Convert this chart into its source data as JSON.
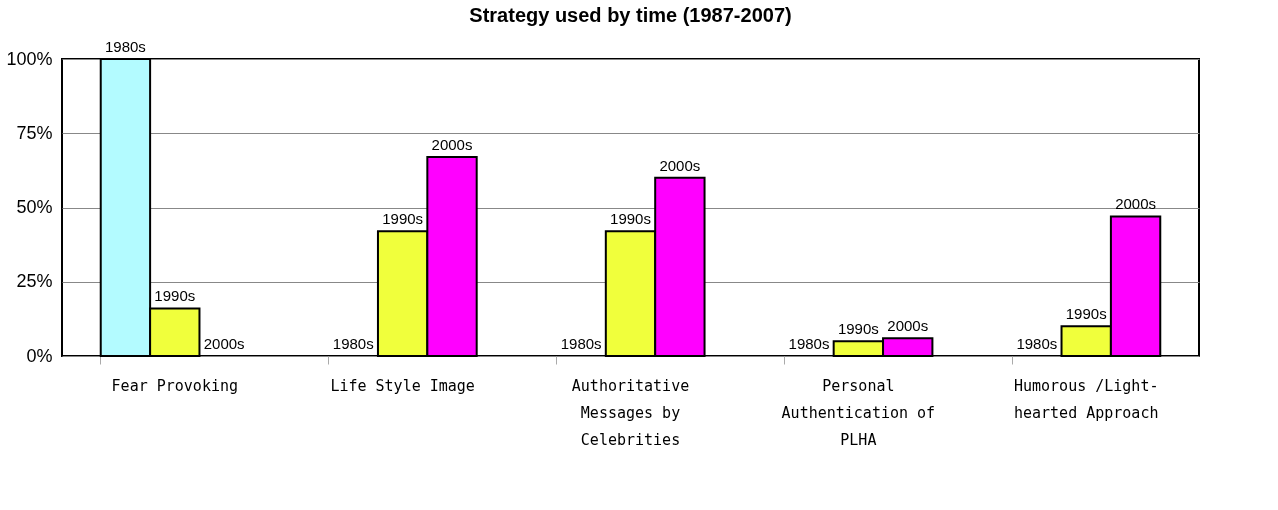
{
  "chart_data": {
    "type": "bar",
    "title": "Strategy used by time (1987-2007)",
    "categories": [
      "Fear Provoking",
      "Life Style Image",
      "Authoritative Messages by Celebrities",
      "Personal Authentication of PLHA",
      "Humorous /Light-hearted Approach"
    ],
    "series": [
      {
        "name": "1980s",
        "color": "#b3fbff",
        "values": [
          100,
          0,
          0,
          0,
          0
        ]
      },
      {
        "name": "1990s",
        "color": "#f0ff3c",
        "values": [
          16,
          42,
          42,
          5,
          10
        ]
      },
      {
        "name": "2000s",
        "color": "#ff00ff",
        "values": [
          0,
          67,
          60,
          6,
          47
        ]
      }
    ],
    "ylim": [
      0,
      100
    ],
    "yticks": [
      {
        "value": 0,
        "label": "0%"
      },
      {
        "value": 25,
        "label": "25%"
      },
      {
        "value": 50,
        "label": "50%"
      },
      {
        "value": 75,
        "label": "75%"
      },
      {
        "value": 100,
        "label": "100%"
      }
    ],
    "grid": "y",
    "legend": false
  }
}
